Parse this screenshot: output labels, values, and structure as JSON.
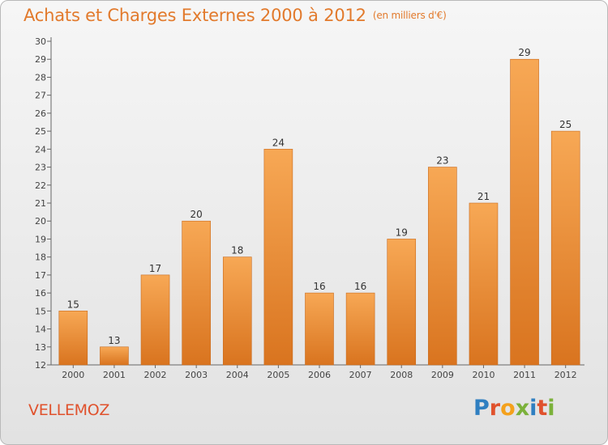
{
  "header": {
    "title": "Achats et Charges Externes 2000 à 2012",
    "subtitle": "(en milliers d'€)"
  },
  "footer": {
    "commune": "VELLEMOZ",
    "logo_letters": [
      "P",
      "r",
      "o",
      "x",
      "i",
      "t",
      "i"
    ],
    "logo_colors": [
      "#2f7fc1",
      "#e0522d",
      "#f4a11c",
      "#7bb13a",
      "#2f7fc1",
      "#e0522d",
      "#7bb13a"
    ]
  },
  "chart_data": {
    "type": "bar",
    "title": "Achats et Charges Externes 2000 à 2012",
    "subtitle": "(en milliers d'€)",
    "categories": [
      "2000",
      "2001",
      "2002",
      "2003",
      "2004",
      "2005",
      "2006",
      "2007",
      "2008",
      "2009",
      "2010",
      "2011",
      "2012"
    ],
    "values": [
      15,
      13,
      17,
      20,
      18,
      24,
      16,
      16,
      19,
      23,
      21,
      29,
      25
    ],
    "data_labels": [
      "15",
      "13",
      "17",
      "20",
      "18",
      "24",
      "16",
      "16",
      "19",
      "23",
      "21",
      "29",
      "25"
    ],
    "yticks": [
      "12",
      "13",
      "14",
      "15",
      "16",
      "17",
      "18",
      "19",
      "20",
      "21",
      "22",
      "23",
      "24",
      "25",
      "26",
      "27",
      "28",
      "29",
      "30"
    ],
    "ylim": [
      12,
      30
    ],
    "xlabel": "",
    "ylabel": "",
    "grid": false,
    "bar_color_top": "#f7a855",
    "bar_color_bottom": "#d9741f"
  }
}
